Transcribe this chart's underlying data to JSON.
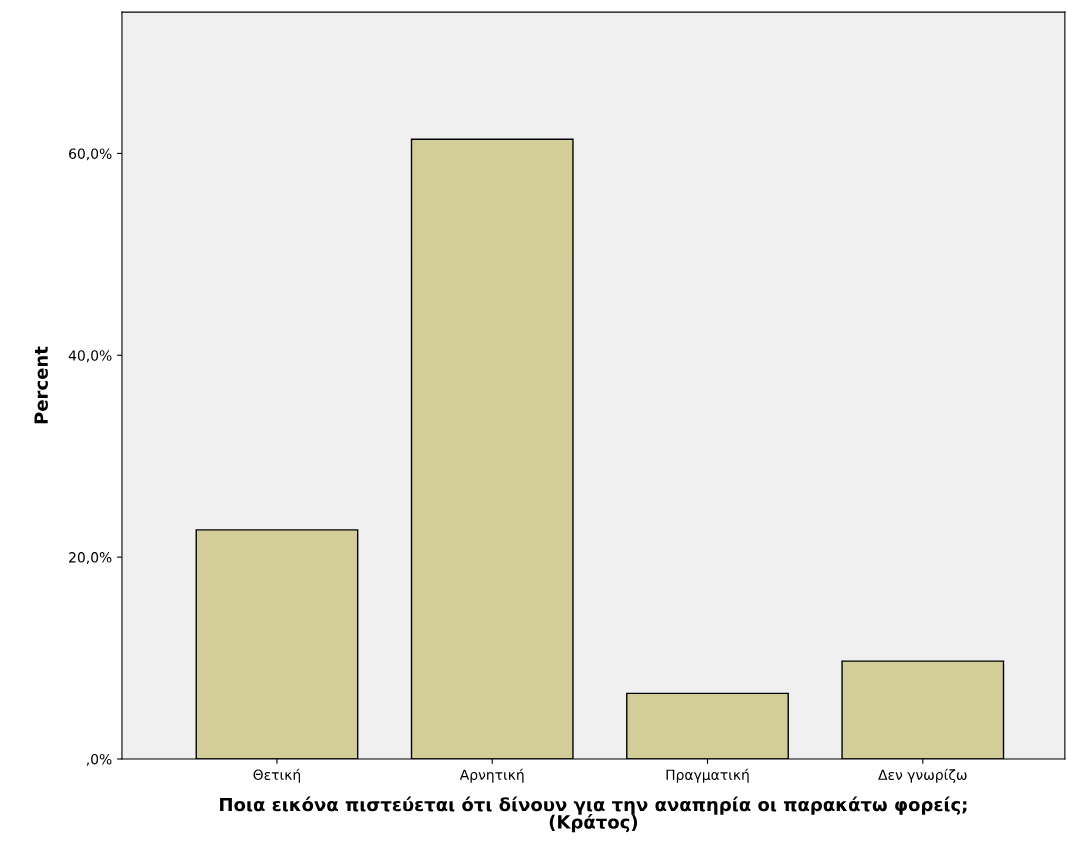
{
  "chart_data": {
    "type": "bar",
    "xlabel": "Ποια εικόνα πιστεύεται ότι δίνουν για την αναπηρία οι παρακάτω φορείς;\n(Κράτος)",
    "ylabel": "Percent",
    "categories": [
      "Θετική",
      "Αρνητική",
      "Πραγματική",
      "Δεν γνωρίζω"
    ],
    "values": [
      22.7,
      61.4,
      6.5,
      9.7
    ],
    "color": "#d3ce97",
    "ylim": [
      0,
      74
    ],
    "yticks": [
      {
        "value": 0,
        "label": ",0%"
      },
      {
        "value": 20,
        "label": "20,0%"
      },
      {
        "value": 40,
        "label": "40,0%"
      },
      {
        "value": 60,
        "label": "60,0%"
      }
    ],
    "grid": false
  }
}
